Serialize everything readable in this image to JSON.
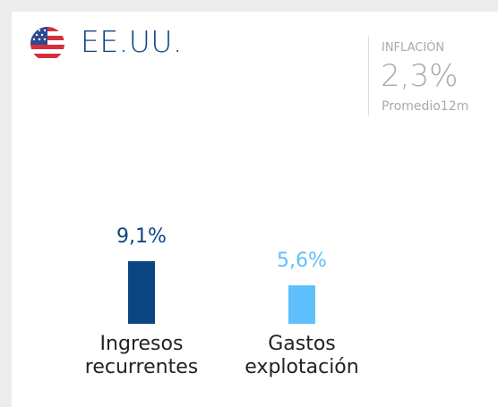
{
  "header": {
    "title": "EE.UU.",
    "inflation": {
      "label": "INFLACIÓN",
      "value": "2,3%",
      "note": "Promedio12m"
    }
  },
  "chart_data": {
    "type": "bar",
    "categories": [
      "Ingresos recurrentes",
      "Gastos explotación"
    ],
    "values": [
      9.1,
      5.6
    ],
    "value_labels": [
      "9,1%",
      "5,6%"
    ],
    "colors": [
      "#0b4683",
      "#5fc0fb"
    ]
  }
}
